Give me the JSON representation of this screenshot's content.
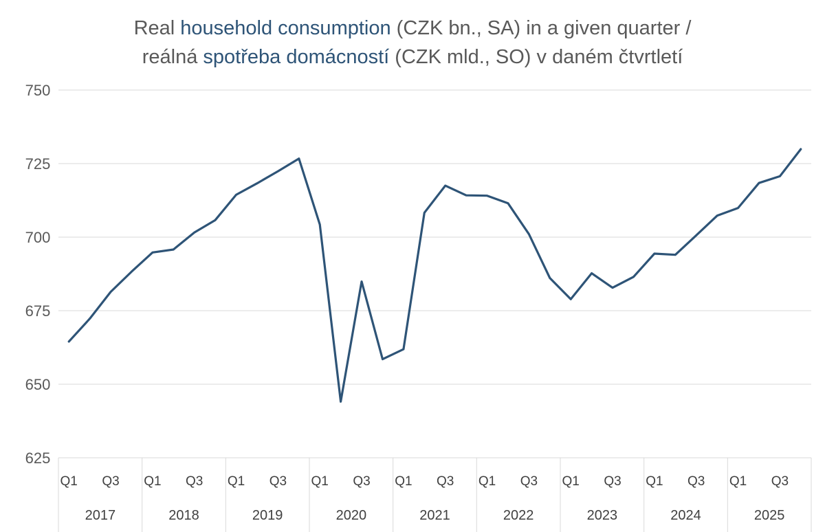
{
  "chart_data": {
    "type": "line",
    "title": {
      "line1": [
        {
          "text": "Real ",
          "accent": false
        },
        {
          "text": "household consumption",
          "accent": true
        },
        {
          "text": " (CZK bn., SA) in a given quarter  /",
          "accent": false
        }
      ],
      "line2": [
        {
          "text": "reálná ",
          "accent": false
        },
        {
          "text": "spotřeba domácností",
          "accent": true
        },
        {
          "text": " (CZK mld., SO) v daném čtvrtletí",
          "accent": false
        }
      ]
    },
    "xlabel": "",
    "ylabel": "",
    "ylim": [
      625,
      750
    ],
    "yticks": [
      625,
      650,
      675,
      700,
      725,
      750
    ],
    "grid": "horizontal",
    "years": [
      "2017",
      "2018",
      "2019",
      "2020",
      "2021",
      "2022",
      "2023",
      "2024",
      "2025"
    ],
    "quarter_labels": [
      "Q1",
      "Q3"
    ],
    "categories": [
      "2017 Q1",
      "2017 Q2",
      "2017 Q3",
      "2017 Q4",
      "2018 Q1",
      "2018 Q2",
      "2018 Q3",
      "2018 Q4",
      "2019 Q1",
      "2019 Q2",
      "2019 Q3",
      "2019 Q4",
      "2020 Q1",
      "2020 Q2",
      "2020 Q3",
      "2020 Q4",
      "2021 Q1",
      "2021 Q2",
      "2021 Q3",
      "2021 Q4",
      "2022 Q1",
      "2022 Q2",
      "2022 Q3",
      "2022 Q4",
      "2023 Q1",
      "2023 Q2",
      "2023 Q3",
      "2023 Q4",
      "2024 Q1",
      "2024 Q2",
      "2024 Q3",
      "2024 Q4",
      "2025 Q1",
      "2025 Q2",
      "2025 Q3",
      "2025 Q4"
    ],
    "series": [
      {
        "values": [
          664.5,
          672.3,
          681.4,
          688.3,
          694.8,
          695.8,
          701.6,
          705.8,
          714.4,
          718.3,
          722.4,
          726.7,
          704.3,
          644.1,
          684.9,
          658.5,
          661.9,
          708.3,
          717.5,
          714.2,
          714.1,
          711.5,
          701.0,
          686.1,
          678.9,
          687.7,
          682.8,
          686.5,
          694.4,
          694.0,
          700.6,
          707.3,
          709.9,
          718.4,
          720.7,
          729.9
        ],
        "color": "#2E5477"
      }
    ],
    "colors": {
      "line": "#2E5477",
      "grid": "#D9D9D9",
      "axis_text": "#595959",
      "title_text": "#595959",
      "title_accent": "#2E5477"
    }
  }
}
